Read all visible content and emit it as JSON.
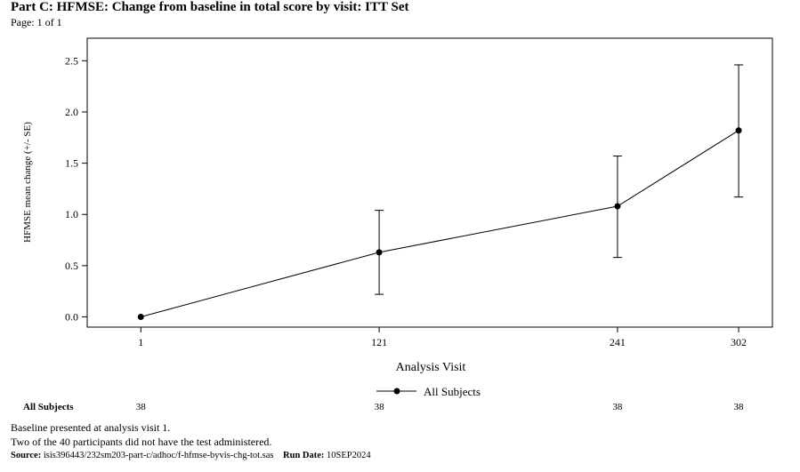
{
  "header": {
    "title": "Part C: HFMSE: Change from baseline in total score by visit: ITT Set",
    "page": "Page: 1 of 1"
  },
  "chart_data": {
    "type": "line",
    "title": "Part C: HFMSE: Change from baseline in total score by visit: ITT Set",
    "xlabel": "Analysis Visit",
    "ylabel": "HFMSE mean change (+/- SE)",
    "categories": [
      "1",
      "121",
      "241",
      "302"
    ],
    "x": [
      1,
      121,
      241,
      302
    ],
    "xlim": [
      -26,
      319
    ],
    "ylim": [
      -0.1,
      2.72
    ],
    "yticks": [
      0.0,
      0.5,
      1.0,
      1.5,
      2.0,
      2.5
    ],
    "ytick_labels": [
      "0.0",
      "0.5",
      "1.0",
      "1.5",
      "2.0",
      "2.5"
    ],
    "grid": false,
    "legend_position": "bottom-center",
    "series": [
      {
        "name": "All Subjects",
        "values": [
          0.0,
          0.63,
          1.08,
          1.82
        ],
        "lower": [
          0.0,
          0.22,
          0.58,
          1.17
        ],
        "upper": [
          0.0,
          1.04,
          1.57,
          2.46
        ]
      }
    ],
    "at_risk": {
      "label": "All Subjects",
      "values": [
        "38",
        "38",
        "38",
        "38"
      ]
    }
  },
  "footer": {
    "note1": "Baseline presented at analysis visit 1.",
    "note2": "Two of the 40 participants did not have the test administered.",
    "source_label": "Source:",
    "source_value": "isis396443/232sm203-part-c/adhoc/f-hfmse-byvis-chg-tot.sas",
    "run_label": "Run Date:",
    "run_value": "10SEP2024"
  }
}
